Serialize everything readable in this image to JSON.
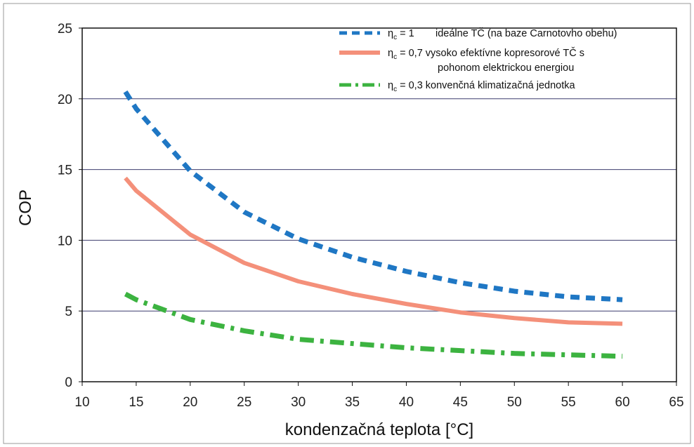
{
  "chart_data": {
    "type": "line",
    "title": "",
    "xlabel": "kondenzačná teplota [°C]",
    "ylabel": "COP",
    "xlim": [
      10,
      65
    ],
    "ylim": [
      0,
      25
    ],
    "xticks": [
      10,
      15,
      20,
      25,
      30,
      35,
      40,
      45,
      50,
      55,
      60,
      65
    ],
    "yticks": [
      0,
      5,
      10,
      15,
      20,
      25
    ],
    "grid": "horizontal",
    "legend_position": "top-right",
    "x": [
      14,
      15,
      20,
      25,
      30,
      35,
      40,
      45,
      50,
      55,
      60
    ],
    "series": [
      {
        "name": "ideálne TČ (na baze Carnotovho obehu)",
        "eta_symbol": "η",
        "eta_subscript": "c",
        "eta_value": " = 1",
        "color": "#1f77c4",
        "style": "dashed",
        "values": [
          20.5,
          19.3,
          14.9,
          12.0,
          10.1,
          8.8,
          7.8,
          7.0,
          6.4,
          6.0,
          5.8
        ]
      },
      {
        "name": "vysoko efektívne kopresorové TČ s pohonom elektrickou energiou",
        "legend_line1": "vysoko efektívne kopresorové TČ s",
        "legend_line2": "pohonom elektrickou energiou",
        "eta_symbol": "η",
        "eta_subscript": "c",
        "eta_value": " = 0,7",
        "color": "#f4907a",
        "style": "solid",
        "values": [
          14.4,
          13.5,
          10.4,
          8.4,
          7.1,
          6.2,
          5.5,
          4.9,
          4.5,
          4.2,
          4.1
        ]
      },
      {
        "name": "konvenčná klimatizačná jednotka",
        "eta_symbol": "η",
        "eta_subscript": "c",
        "eta_value": " = 0,3",
        "color": "#3cb340",
        "style": "dashdot",
        "values": [
          6.2,
          5.8,
          4.4,
          3.6,
          3.0,
          2.7,
          2.4,
          2.2,
          2.0,
          1.9,
          1.8
        ]
      }
    ]
  }
}
